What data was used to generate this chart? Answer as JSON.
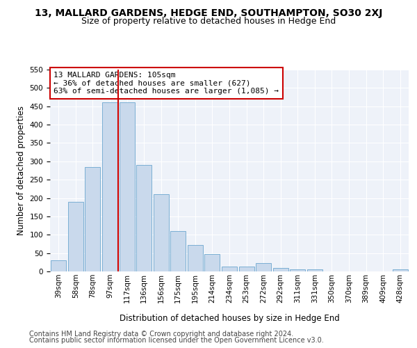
{
  "title": "13, MALLARD GARDENS, HEDGE END, SOUTHAMPTON, SO30 2XJ",
  "subtitle": "Size of property relative to detached houses in Hedge End",
  "xlabel": "Distribution of detached houses by size in Hedge End",
  "ylabel": "Number of detached properties",
  "bar_labels": [
    "39sqm",
    "58sqm",
    "78sqm",
    "97sqm",
    "117sqm",
    "136sqm",
    "156sqm",
    "175sqm",
    "195sqm",
    "214sqm",
    "234sqm",
    "253sqm",
    "272sqm",
    "292sqm",
    "311sqm",
    "331sqm",
    "350sqm",
    "370sqm",
    "389sqm",
    "409sqm",
    "428sqm"
  ],
  "bar_values": [
    30,
    190,
    285,
    460,
    460,
    290,
    210,
    110,
    72,
    47,
    13,
    13,
    22,
    10,
    5,
    5,
    0,
    0,
    0,
    0,
    5
  ],
  "bar_color": "#c9d9ec",
  "bar_edge_color": "#7bafd4",
  "property_bin_index": 3.5,
  "vline_color": "#cc0000",
  "annotation_text": "13 MALLARD GARDENS: 105sqm\n← 36% of detached houses are smaller (627)\n63% of semi-detached houses are larger (1,085) →",
  "annotation_box_color": "#ffffff",
  "annotation_box_edge": "#cc0000",
  "ylim": [
    0,
    550
  ],
  "yticks": [
    0,
    50,
    100,
    150,
    200,
    250,
    300,
    350,
    400,
    450,
    500,
    550
  ],
  "footer_line1": "Contains HM Land Registry data © Crown copyright and database right 2024.",
  "footer_line2": "Contains public sector information licensed under the Open Government Licence v3.0.",
  "background_color": "#eef2f9",
  "grid_color": "#ffffff",
  "title_fontsize": 10,
  "subtitle_fontsize": 9,
  "axis_label_fontsize": 8.5,
  "tick_fontsize": 7.5,
  "annotation_fontsize": 8,
  "footer_fontsize": 7
}
